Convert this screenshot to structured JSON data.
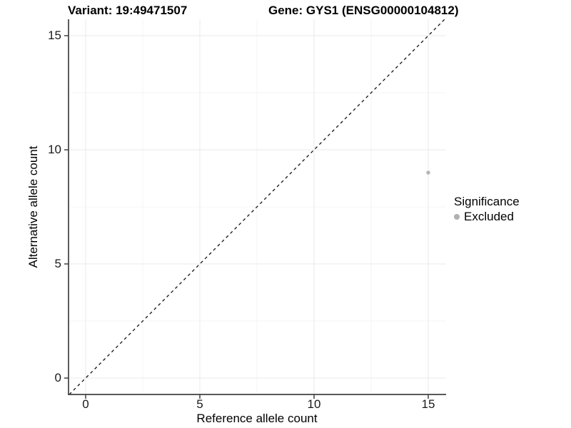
{
  "chart_data": {
    "type": "scatter",
    "titles": {
      "left": "Variant: 19:49471507",
      "right": "Gene: GYS1 (ENSG00000104812)"
    },
    "xlabel": "Reference allele count",
    "ylabel": "Alternative allele count",
    "x_ticks": [
      "0",
      "5",
      "10",
      "15"
    ],
    "y_ticks": [
      "0",
      "5",
      "10",
      "15"
    ],
    "x_tick_values": [
      0,
      5,
      10,
      15
    ],
    "y_tick_values": [
      0,
      5,
      10,
      15
    ],
    "minor_tick_values": [
      2.5,
      7.5,
      12.5
    ],
    "xlim": [
      -0.75,
      15.8
    ],
    "ylim": [
      -0.72,
      15.7
    ],
    "grid": "on",
    "reference_line": {
      "equation": "y = x",
      "style": "dashed",
      "color": "#000000"
    },
    "series": [
      {
        "name": "Excluded",
        "color": "#b7b7b7",
        "points": [
          [
            15,
            9
          ]
        ]
      }
    ],
    "legend": {
      "title": "Significance",
      "position": "right",
      "entries": [
        {
          "label": "Excluded",
          "color": "#b0b0b0",
          "marker": "circle"
        }
      ]
    }
  },
  "colors": {
    "background": "#ffffff",
    "axis_line": "#404040",
    "grid_major": "#e9e9e9",
    "grid_minor": "#f4f4f4",
    "tick_text": "#1a1a1a",
    "point": "#b7b7b7"
  }
}
